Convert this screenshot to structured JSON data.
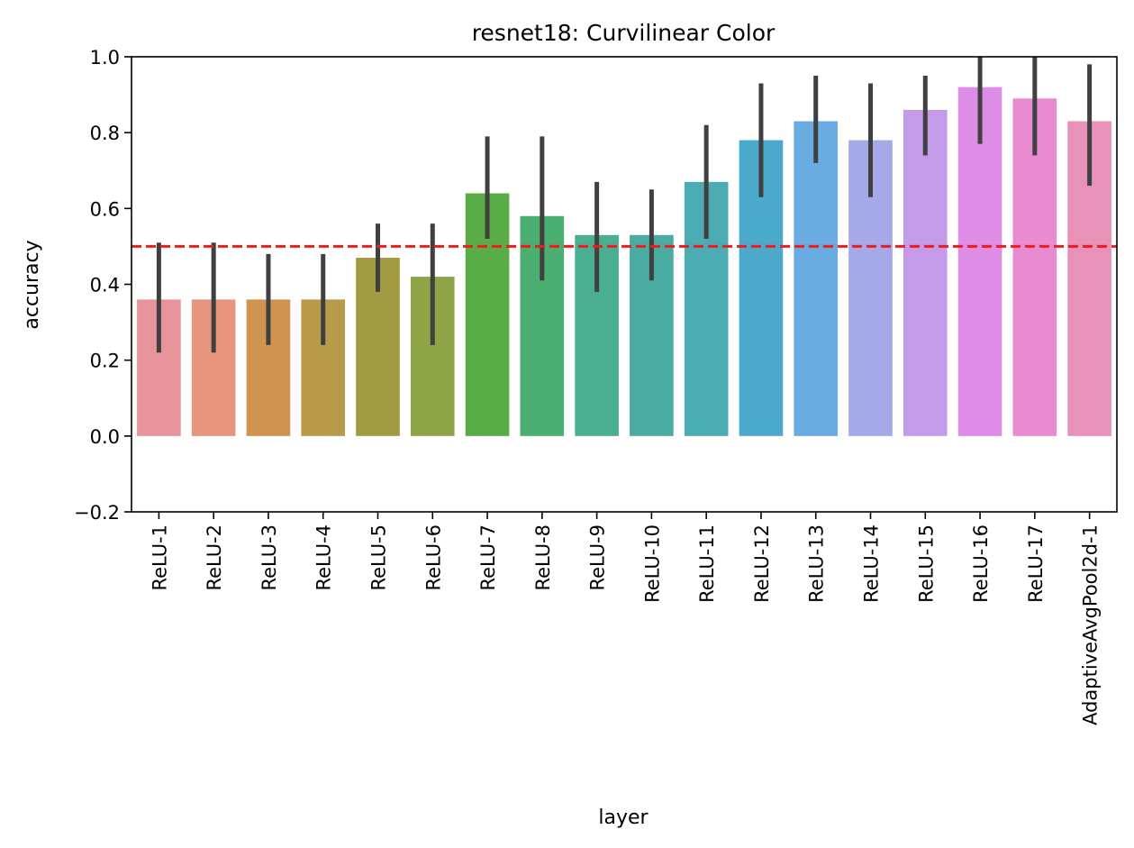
{
  "chart_data": {
    "type": "bar",
    "title": "resnet18: Curvilinear Color",
    "xlabel": "layer",
    "ylabel": "accuracy",
    "ylim": [
      -0.2,
      1.0
    ],
    "yticks": [
      "−0.2",
      "0.0",
      "0.2",
      "0.4",
      "0.6",
      "0.8",
      "1.0"
    ],
    "ytick_values": [
      -0.2,
      0.0,
      0.2,
      0.4,
      0.6,
      0.8,
      1.0
    ],
    "categories": [
      "ReLU-1",
      "ReLU-2",
      "ReLU-3",
      "ReLU-4",
      "ReLU-5",
      "ReLU-6",
      "ReLU-7",
      "ReLU-8",
      "ReLU-9",
      "ReLU-10",
      "ReLU-11",
      "ReLU-12",
      "ReLU-13",
      "ReLU-14",
      "ReLU-15",
      "ReLU-16",
      "ReLU-17",
      "AdaptiveAvgPool2d-1"
    ],
    "values": [
      0.36,
      0.36,
      0.36,
      0.36,
      0.47,
      0.42,
      0.64,
      0.58,
      0.53,
      0.53,
      0.67,
      0.78,
      0.83,
      0.78,
      0.86,
      0.92,
      0.89,
      0.83
    ],
    "error_low": [
      0.22,
      0.22,
      0.24,
      0.24,
      0.38,
      0.24,
      0.52,
      0.41,
      0.38,
      0.41,
      0.52,
      0.63,
      0.72,
      0.63,
      0.74,
      0.77,
      0.74,
      0.66
    ],
    "error_high": [
      0.51,
      0.51,
      0.48,
      0.48,
      0.56,
      0.56,
      0.79,
      0.79,
      0.67,
      0.65,
      0.82,
      0.93,
      0.95,
      0.93,
      0.95,
      1.0,
      1.0,
      0.98
    ],
    "colors": [
      "#e8949d",
      "#e8957f",
      "#cf944f",
      "#b79b4a",
      "#a19b43",
      "#8fa446",
      "#5aac47",
      "#4aaf70",
      "#4aae91",
      "#4aaba1",
      "#4bacb4",
      "#4ba9cb",
      "#6aabe1",
      "#a5a9e8",
      "#c49be8",
      "#de8de6",
      "#e98bd0",
      "#e892b9"
    ],
    "error_color": "#404040",
    "reference_line": {
      "value": 0.5,
      "color": "#ee1c1c",
      "style": "dashed"
    },
    "grid": false,
    "legend": "none"
  }
}
